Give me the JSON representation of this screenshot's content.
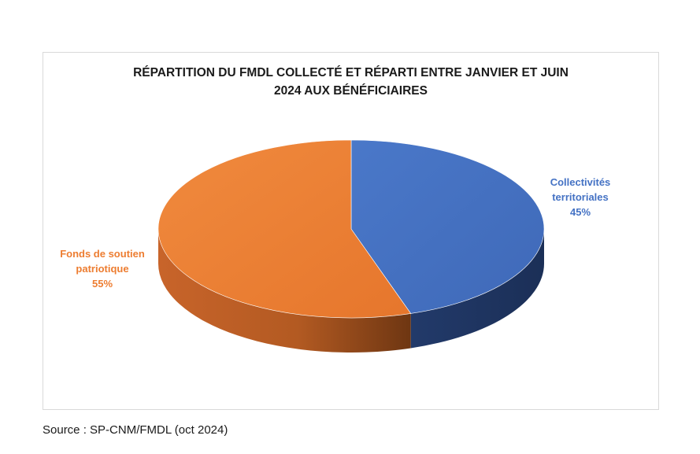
{
  "chart_data": {
    "type": "pie",
    "title_lines": [
      "RÉPARTITION DU FMDL COLLECTÉ ET RÉPARTI ENTRE JANVIER ET JUIN",
      "2024 AUX BÉNÉFICIAIRES"
    ],
    "slices": [
      {
        "label_lines": [
          "Collectivités",
          "territoriales"
        ],
        "value": 45,
        "value_label": "45%",
        "color": "#4472C4"
      },
      {
        "label_lines": [
          "Fonds de soutien",
          "patriotique"
        ],
        "value": 55,
        "value_label": "55%",
        "color": "#ED7D31"
      }
    ]
  },
  "source": "Source : SP-CNM/FMDL (oct 2024)"
}
